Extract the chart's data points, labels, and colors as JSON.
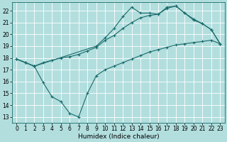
{
  "bg_color": "#b2dede",
  "grid_color": "#ffffff",
  "line_color": "#1a6b6b",
  "line_width": 0.8,
  "marker": "+",
  "marker_size": 3,
  "marker_edge_width": 0.8,
  "xlabel": "Humidex (Indice chaleur)",
  "xlabel_fontsize": 6.5,
  "tick_fontsize": 5.5,
  "xlim": [
    -0.5,
    23.5
  ],
  "ylim": [
    12.5,
    22.7
  ],
  "yticks": [
    13,
    14,
    15,
    16,
    17,
    18,
    19,
    20,
    21,
    22
  ],
  "xticks": [
    0,
    1,
    2,
    3,
    4,
    5,
    6,
    7,
    8,
    9,
    10,
    11,
    12,
    13,
    14,
    15,
    16,
    17,
    18,
    19,
    20,
    21,
    22,
    23
  ],
  "line1_x": [
    0,
    1,
    2,
    9,
    10,
    11,
    12,
    13,
    14,
    15,
    16,
    17,
    18,
    19,
    20,
    21,
    22,
    23
  ],
  "line1_y": [
    17.9,
    17.6,
    17.3,
    19.0,
    19.7,
    20.5,
    21.5,
    22.3,
    21.8,
    21.8,
    21.7,
    22.3,
    22.4,
    21.8,
    21.3,
    20.9,
    20.4,
    19.2
  ],
  "line2_x": [
    0,
    1,
    2,
    3,
    4,
    5,
    6,
    7,
    8,
    9,
    10,
    11,
    12,
    13,
    14,
    15,
    16,
    17,
    18,
    19,
    20,
    21,
    22,
    23
  ],
  "line2_y": [
    17.9,
    17.6,
    17.3,
    17.6,
    17.8,
    18.0,
    18.1,
    18.3,
    18.6,
    18.9,
    19.5,
    19.9,
    20.5,
    21.0,
    21.4,
    21.6,
    21.7,
    22.2,
    22.4,
    21.8,
    21.2,
    20.9,
    20.4,
    19.2
  ],
  "line3_x": [
    0,
    1,
    2,
    3,
    4,
    5,
    6,
    7,
    8,
    9,
    10,
    11,
    12,
    13,
    14,
    15,
    16,
    17,
    18,
    19,
    20,
    21,
    22,
    23
  ],
  "line3_y": [
    17.9,
    17.6,
    17.3,
    15.9,
    14.7,
    14.3,
    13.3,
    13.0,
    15.0,
    16.5,
    17.0,
    17.3,
    17.6,
    17.9,
    18.2,
    18.5,
    18.7,
    18.9,
    19.1,
    19.2,
    19.3,
    19.4,
    19.5,
    19.2
  ]
}
